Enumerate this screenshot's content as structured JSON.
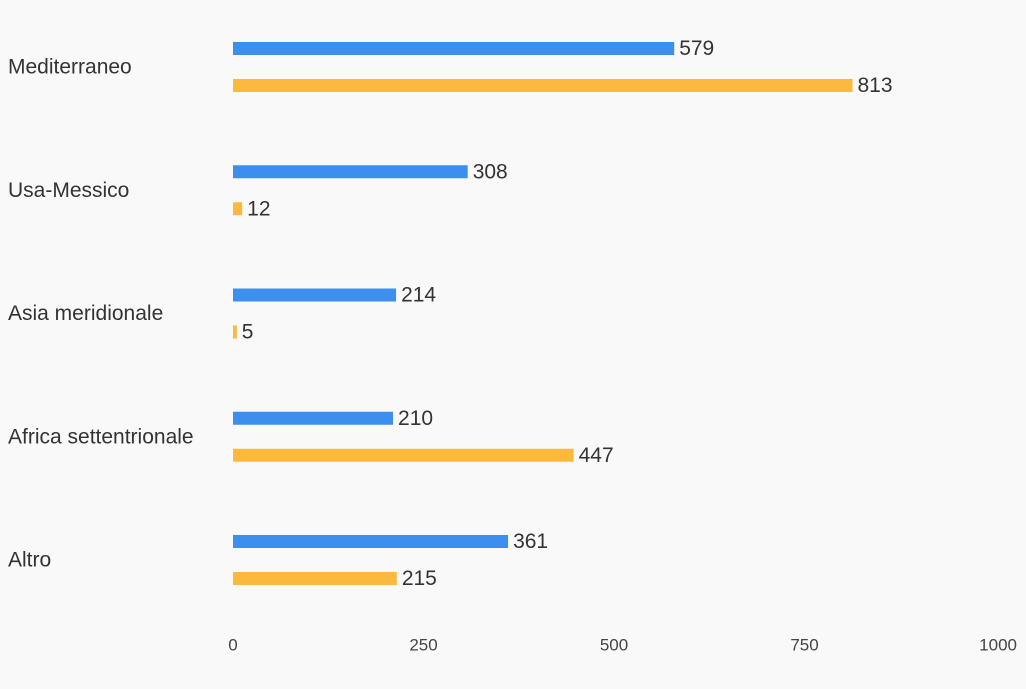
{
  "chart_data": {
    "type": "bar",
    "orientation": "horizontal",
    "categories": [
      "Mediterraneo",
      "Usa-Messico",
      "Asia meridionale",
      "Africa settentrionale",
      "Altro"
    ],
    "series": [
      {
        "values": [
          579,
          308,
          214,
          210,
          361
        ],
        "color": "#3d8fef"
      },
      {
        "values": [
          813,
          12,
          5,
          447,
          215
        ],
        "color": "#fdb93e"
      }
    ],
    "xlim": [
      0,
      1000
    ],
    "xticks": [
      0,
      250,
      500,
      750,
      1000
    ],
    "tick_labels": [
      "0",
      "250",
      "500",
      "750",
      "1000"
    ],
    "grid": false,
    "legend": "none",
    "data_labels": true
  }
}
